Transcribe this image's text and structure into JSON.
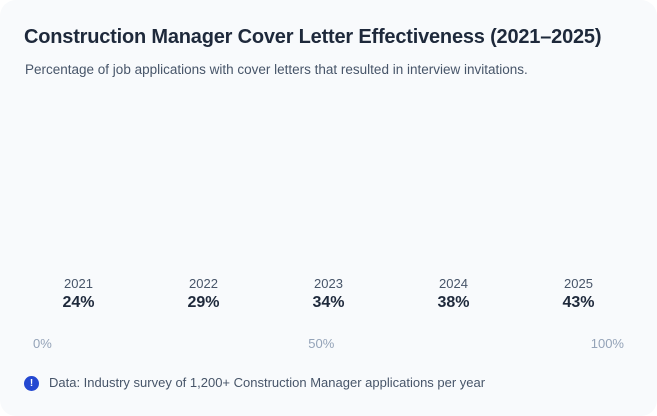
{
  "card": {
    "title": "Construction Manager Cover Letter Effectiveness (2021–2025)",
    "subtitle": "Percentage of job applications with cover letters that resulted in interview invitations.",
    "footer": {
      "icon_glyph": "!",
      "text": "Data: Industry survey of 1,200+ Construction Manager applications per year"
    }
  },
  "chart_data": {
    "type": "bar",
    "title": "Construction Manager Cover Letter Effectiveness (2021–2025)",
    "subtitle": "Percentage of job applications with cover letters that resulted in interview invitations.",
    "categories": [
      "2021",
      "2022",
      "2023",
      "2024",
      "2025"
    ],
    "values": [
      24,
      29,
      34,
      38,
      43
    ],
    "value_labels": [
      "24%",
      "29%",
      "34%",
      "38%",
      "43%"
    ],
    "xlabel": "",
    "ylabel": "",
    "axis_ticks": [
      "0%",
      "50%",
      "100%"
    ],
    "axis_range": [
      0,
      100
    ],
    "grid": false,
    "legend": false,
    "note": "Data: Industry survey of 1,200+ Construction Manager applications per year",
    "plot_area_rendered_empty": true
  },
  "colors": {
    "card_background": "#f8fafc",
    "page_background": "#ffffff",
    "title_text": "#1e293b",
    "subtitle_text": "#475569",
    "year_label_text": "#475569",
    "value_label_text": "#1e293b",
    "axis_tick_text": "#94a3b8",
    "footer_text": "#475569",
    "info_icon_blue": "#2448d1"
  }
}
